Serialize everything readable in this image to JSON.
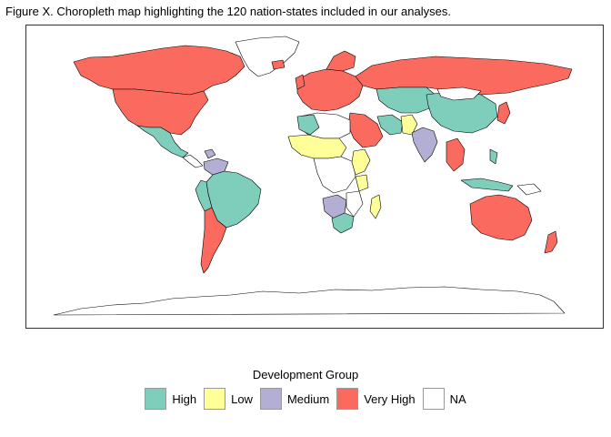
{
  "caption": "Figure X. Choropleth map highlighting the 120 nation-states included in our analyses.",
  "legend": {
    "title": "Development Group",
    "items": [
      {
        "label": "High",
        "color": "#7fcdbb"
      },
      {
        "label": "Low",
        "color": "#ffff99"
      },
      {
        "label": "Medium",
        "color": "#b3aed3"
      },
      {
        "label": "Very High",
        "color": "#fb6a5e"
      },
      {
        "label": "NA",
        "color": "#ffffff"
      }
    ]
  },
  "colors": {
    "high": "#7fcdbb",
    "low": "#ffff99",
    "medium": "#b3aed3",
    "very_high": "#fb6a5e",
    "na": "#ffffff"
  }
}
